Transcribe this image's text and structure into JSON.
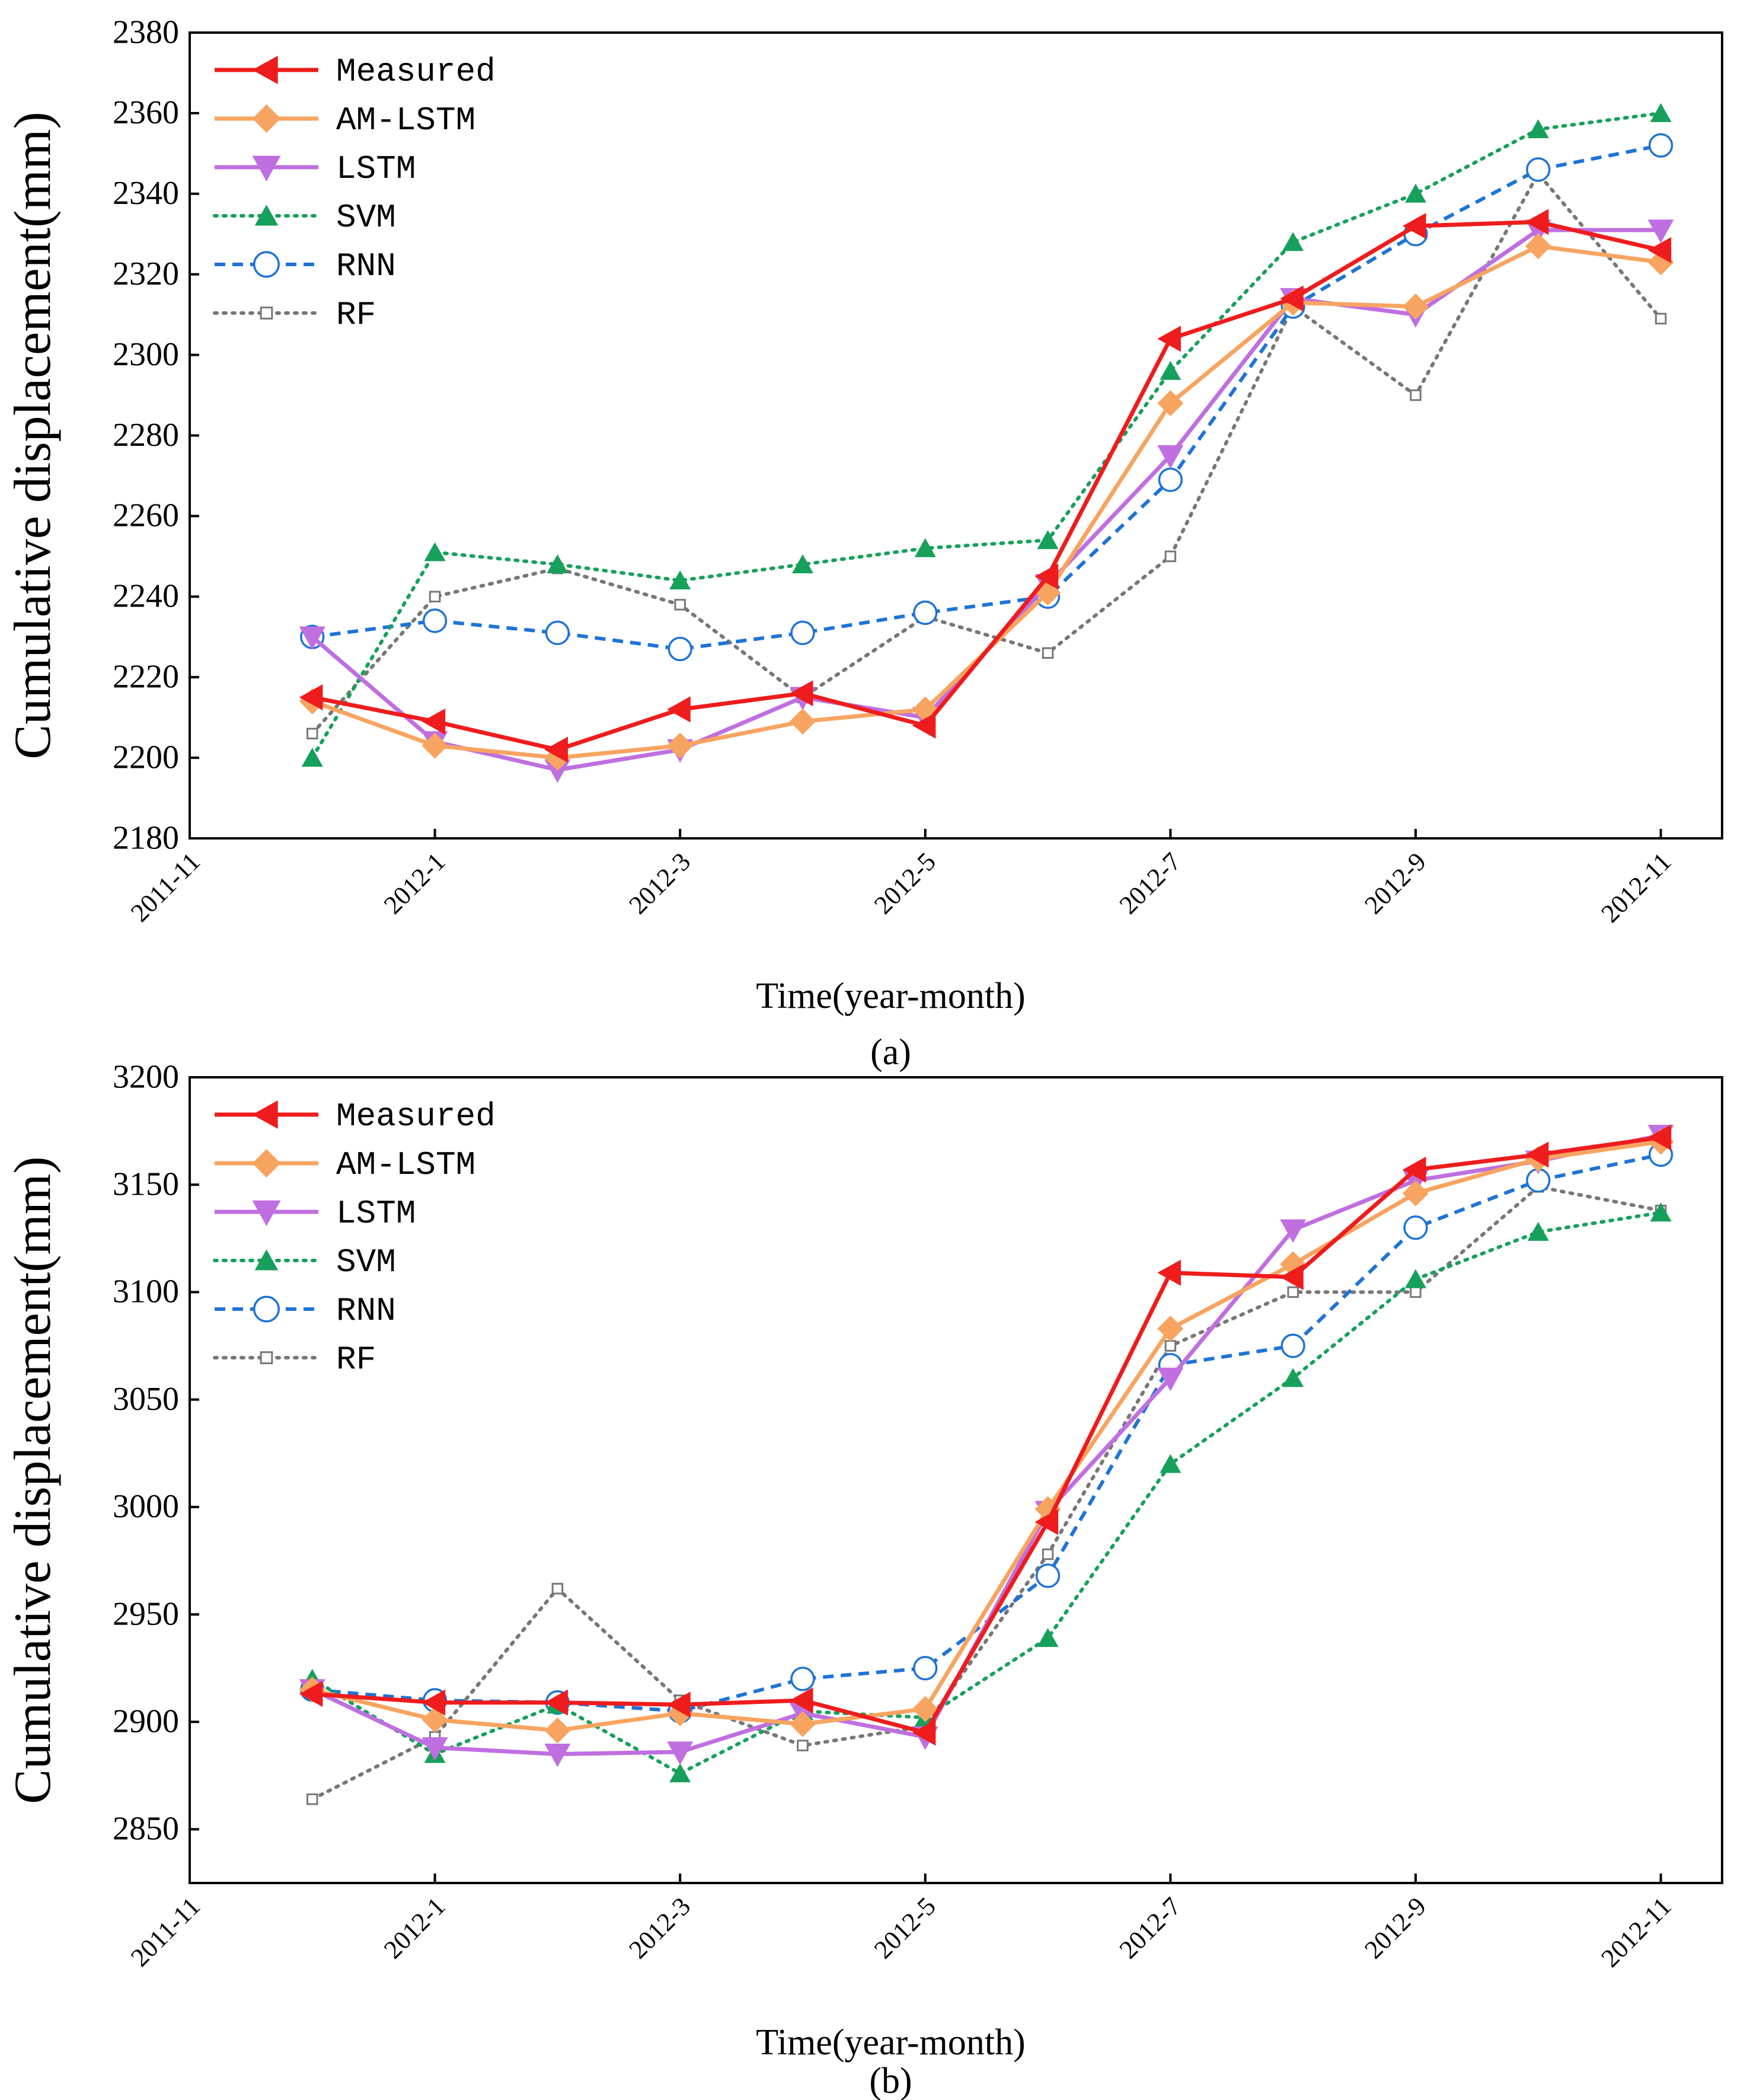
{
  "chart_data": [
    {
      "type": "line",
      "panel_label": "(a)",
      "xlabel": "Time(year-month)",
      "ylabel": "Cumulative displacement(mm)",
      "ylim": [
        2180,
        2380
      ],
      "yticks": [
        2180,
        2200,
        2220,
        2240,
        2260,
        2280,
        2300,
        2320,
        2340,
        2360,
        2380
      ],
      "xlim": [
        -1,
        11.5
      ],
      "xticks": [
        -1,
        1,
        3,
        5,
        7,
        9,
        11
      ],
      "xtick_labels": [
        "2011-11",
        "2012-1",
        "2012-3",
        "2012-5",
        "2012-7",
        "2012-9",
        "2012-11"
      ],
      "x": [
        0,
        1,
        2,
        3,
        4,
        5,
        6,
        7,
        8,
        9,
        10,
        11
      ],
      "series": [
        {
          "name": "Measured",
          "color": "#ee1c1c",
          "marker": "triangle-left",
          "dash": "solid",
          "values": [
            2215,
            2209,
            2202,
            2212,
            2216,
            2208,
            2245,
            2304,
            2314,
            2332,
            2333,
            2326
          ]
        },
        {
          "name": "AM-LSTM",
          "color": "#f7a460",
          "marker": "diamond",
          "dash": "solid",
          "values": [
            2214,
            2203,
            2200,
            2203,
            2209,
            2212,
            2241,
            2288,
            2313,
            2312,
            2327,
            2323
          ]
        },
        {
          "name": "LSTM",
          "color": "#bf6fe0",
          "marker": "triangle-down",
          "dash": "solid",
          "values": [
            2230,
            2204,
            2197,
            2202,
            2215,
            2210,
            2243,
            2275,
            2314,
            2310,
            2331,
            2331
          ]
        },
        {
          "name": "SVM",
          "color": "#16a05b",
          "marker": "triangle-up",
          "dash": "dot",
          "values": [
            2200,
            2251,
            2248,
            2244,
            2248,
            2252,
            2254,
            2296,
            2328,
            2340,
            2356,
            2360
          ]
        },
        {
          "name": "RNN",
          "color": "#1e73d6",
          "marker": "circle",
          "dash": "dash",
          "values": [
            2230,
            2234,
            2231,
            2227,
            2231,
            2236,
            2240,
            2269,
            2312,
            2330,
            2346,
            2352
          ]
        },
        {
          "name": "RF",
          "color": "#777777",
          "marker": "square",
          "dash": "dot",
          "values": [
            2206,
            2240,
            2247,
            2238,
            2215,
            2235,
            2226,
            2250,
            2312,
            2290,
            2345,
            2309
          ]
        }
      ]
    },
    {
      "type": "line",
      "panel_label": "(b)",
      "xlabel": "Time(year-month)",
      "ylabel": "Cumulative displacement(mm)",
      "ylim": [
        2825,
        3200
      ],
      "yticks": [
        2850,
        2900,
        2950,
        3000,
        3050,
        3100,
        3150,
        3200
      ],
      "xlim": [
        -1,
        11.5
      ],
      "xticks": [
        -1,
        1,
        3,
        5,
        7,
        9,
        11
      ],
      "xtick_labels": [
        "2011-11",
        "2012-1",
        "2012-3",
        "2012-5",
        "2012-7",
        "2012-9",
        "2012-11"
      ],
      "x": [
        0,
        1,
        2,
        3,
        4,
        5,
        6,
        7,
        8,
        9,
        10,
        11
      ],
      "series": [
        {
          "name": "Measured",
          "color": "#ee1c1c",
          "marker": "triangle-left",
          "dash": "solid",
          "values": [
            2913,
            2909,
            2909,
            2908,
            2910,
            2895,
            2993,
            3109,
            3107,
            3157,
            3164,
            3172
          ]
        },
        {
          "name": "AM-LSTM",
          "color": "#f7a460",
          "marker": "diamond",
          "dash": "solid",
          "values": [
            2915,
            2901,
            2896,
            2904,
            2899,
            2906,
            2999,
            3083,
            3113,
            3146,
            3162,
            3170
          ]
        },
        {
          "name": "LSTM",
          "color": "#bf6fe0",
          "marker": "triangle-down",
          "dash": "solid",
          "values": [
            2915,
            2888,
            2885,
            2886,
            2904,
            2893,
            2998,
            3060,
            3129,
            3152,
            3161,
            3173
          ]
        },
        {
          "name": "SVM",
          "color": "#16a05b",
          "marker": "triangle-up",
          "dash": "dot",
          "values": [
            2920,
            2885,
            2908,
            2876,
            2905,
            2902,
            2939,
            3020,
            3060,
            3106,
            3128,
            3137
          ]
        },
        {
          "name": "RNN",
          "color": "#1e73d6",
          "marker": "circle",
          "dash": "dash",
          "values": [
            2915,
            2910,
            2909,
            2905,
            2920,
            2925,
            2968,
            3066,
            3075,
            3130,
            3152,
            3164
          ]
        },
        {
          "name": "RF",
          "color": "#777777",
          "marker": "square",
          "dash": "dot",
          "values": [
            2864,
            2893,
            2962,
            2910,
            2889,
            2898,
            2978,
            3075,
            3100,
            3100,
            3149,
            3138
          ]
        }
      ]
    }
  ]
}
